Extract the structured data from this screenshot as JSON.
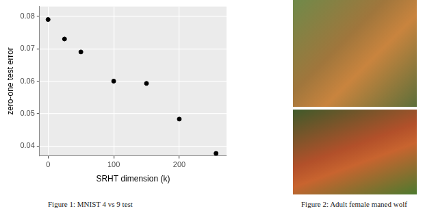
{
  "chart_data": {
    "type": "scatter",
    "x_label": "SRHT dimension (k)",
    "y_label": "zero-one test error",
    "x": [
      0,
      25,
      50,
      100,
      150,
      200,
      256
    ],
    "values": [
      0.079,
      0.073,
      0.069,
      0.06,
      0.0593,
      0.0483,
      0.0377
    ],
    "color": "#000000",
    "marker": "circle",
    "xlim": [
      -13,
      272
    ],
    "xticks": [
      0,
      100,
      200
    ],
    "ylim": [
      0.037,
      0.083
    ],
    "yticks": [
      0.04,
      0.05,
      0.06,
      0.07,
      0.08
    ],
    "grid": true
  },
  "captions": [
    "Figure 1: MNIST 4 vs 9 test",
    "Figure 2: Adult female maned wolf"
  ]
}
